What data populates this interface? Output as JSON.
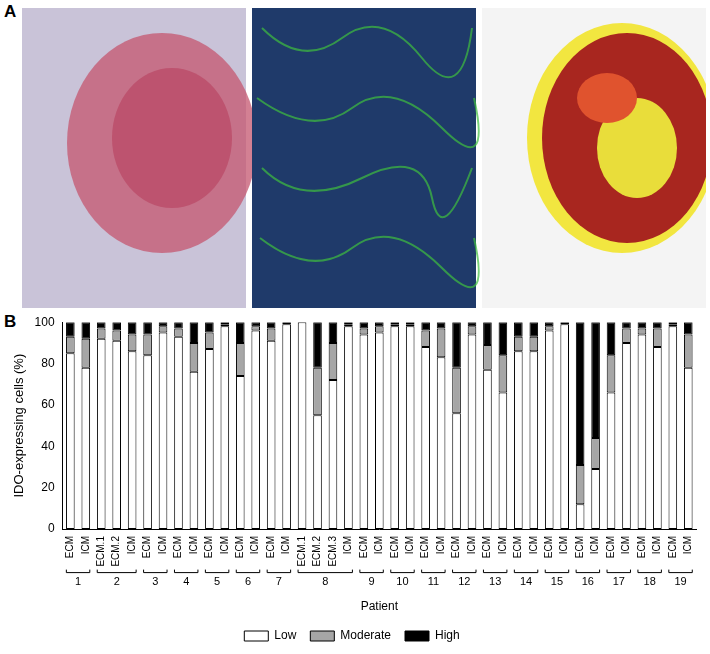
{
  "panel_labels": [
    "A",
    "B"
  ],
  "chart_data": {
    "type": "bar",
    "stacked": true,
    "grid": false,
    "legend": "bottom",
    "y_label": "IDO-expressing cells (%)",
    "x_label": "Patient",
    "ylim": [
      0,
      100
    ],
    "yticks": [
      0,
      20,
      40,
      60,
      80,
      100
    ],
    "categories": [
      "ECM",
      "ICM",
      "ECM.1",
      "ECM.2",
      "ICM",
      "ECM",
      "ICM",
      "ECM",
      "ICM",
      "ECM",
      "ICM",
      "ECM",
      "ICM",
      "ECM",
      "ICM",
      "ECM.1",
      "ECM.2",
      "ECM.3",
      "ICM",
      "ECM",
      "ICM",
      "ECM",
      "ICM",
      "ECM",
      "ICM",
      "ECM",
      "ICM",
      "ECM",
      "ICM",
      "ECM",
      "ICM",
      "ECM",
      "ICM",
      "ECM",
      "ICM",
      "ECM",
      "ICM",
      "ECM",
      "ICM",
      "ECM",
      "ICM"
    ],
    "patients": [
      "1",
      "1",
      "2",
      "2",
      "2",
      "3",
      "3",
      "4",
      "4",
      "5",
      "5",
      "6",
      "6",
      "7",
      "7",
      "8",
      "8",
      "8",
      "8",
      "9",
      "9",
      "10",
      "10",
      "11",
      "11",
      "12",
      "12",
      "13",
      "13",
      "14",
      "14",
      "15",
      "15",
      "16",
      "16",
      "17",
      "17",
      "18",
      "18",
      "19",
      "19"
    ],
    "series": [
      {
        "name": "Low",
        "color": "#ffffff",
        "values": [
          85,
          78,
          92,
          91,
          86,
          84,
          95,
          93,
          76,
          87,
          98,
          74,
          96,
          91,
          99,
          100,
          55,
          72,
          98,
          94,
          95,
          98,
          98,
          88,
          83,
          56,
          94,
          77,
          66,
          86,
          86,
          96,
          99,
          12,
          29,
          66,
          90,
          94,
          88,
          98,
          78
        ]
      },
      {
        "name": "Moderate",
        "color": "#a6a6a6",
        "values": [
          8,
          14,
          5,
          5,
          8,
          10,
          3,
          4,
          14,
          8,
          1,
          16,
          2,
          6,
          1,
          0,
          23,
          18,
          1,
          3,
          3,
          1,
          1,
          8,
          14,
          22,
          4,
          12,
          18,
          7,
          7,
          2,
          1,
          19,
          15,
          18,
          7,
          3,
          9,
          1,
          16
        ]
      },
      {
        "name": "High",
        "color": "#000000",
        "values": [
          7,
          8,
          3,
          4,
          6,
          6,
          2,
          3,
          10,
          5,
          1,
          10,
          2,
          3,
          0,
          0,
          22,
          10,
          1,
          3,
          2,
          1,
          1,
          4,
          3,
          22,
          2,
          11,
          16,
          7,
          7,
          2,
          0,
          69,
          56,
          16,
          3,
          3,
          3,
          1,
          6
        ]
      }
    ]
  }
}
